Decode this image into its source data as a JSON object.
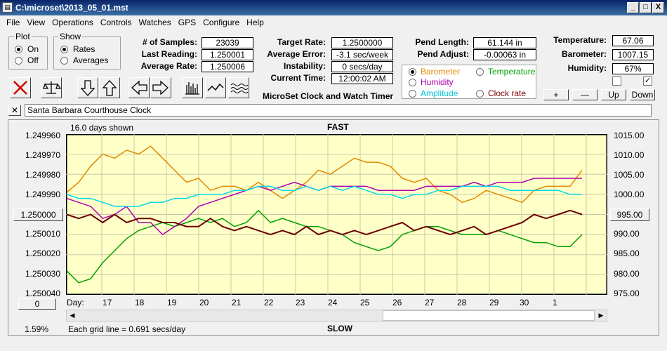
{
  "window": {
    "title": "C:\\microset\\2013_05_01.mst",
    "controls": [
      "_",
      "□",
      "X"
    ]
  },
  "menu": [
    "File",
    "View",
    "Operations",
    "Controls",
    "Watches",
    "GPS",
    "Configure",
    "Help"
  ],
  "plot_group": {
    "title": "Plot",
    "options": [
      "On",
      "Off"
    ],
    "selected": "On"
  },
  "show_group": {
    "title": "Show",
    "options": [
      "Rates",
      "Averages"
    ],
    "selected": "Rates"
  },
  "stats": {
    "samples_label": "# of Samples:",
    "samples": "23039",
    "last_label": "Last Reading:",
    "last": "1.250001",
    "avg_label": "Average Rate:",
    "avg": "1.250006"
  },
  "rates": {
    "target_label": "Target Rate:",
    "target": "1.2500000",
    "err_label": "Average Error:",
    "err": "-3.1 sec/week",
    "inst_label": "Instability:",
    "inst": "0 secs/day",
    "time_label": "Current Time:",
    "time": "12:00:02 AM"
  },
  "app_label": "MicroSet Clock and Watch Timer",
  "pend": {
    "len_label": "Pend Length:",
    "len": "61.144 in",
    "adj_label": "Pend Adjust:",
    "adj": "-0.00063 in"
  },
  "env": {
    "temp_label": "Temperature:",
    "temp": "67.06",
    "baro_label": "Barometer:",
    "baro": "1007.15",
    "hum_label": "Humidity:",
    "hum": "67%"
  },
  "aux_options": [
    {
      "label": "Barometer",
      "color": "#e08a00",
      "selected": true
    },
    {
      "label": "Temperature",
      "color": "#00a000",
      "selected": false
    },
    {
      "label": "Humidity",
      "color": "#b000b0",
      "selected": false
    },
    {
      "label": "Clock rate",
      "color": "#800000",
      "selected": false
    },
    {
      "label": "Amplitude",
      "color": "#00c8d8",
      "selected": false
    }
  ],
  "scale_buttons": [
    "+",
    "—",
    "Up",
    "Down"
  ],
  "checkboxes": [
    false,
    true
  ],
  "clock_name": "Santa Barbara Courthouse Clock",
  "chart_data": {
    "type": "line",
    "top_label": "FAST",
    "bottom_label": "SLOW",
    "days_shown": "16.0 days shown",
    "grid_note": "Each grid line = 0.691 secs/day",
    "percent": "1.59%",
    "left_button": "1.250000",
    "right_button": "995.00",
    "zero_button": "0",
    "day_label": "Day:",
    "x_ticks": [
      "17",
      "18",
      "19",
      "20",
      "21",
      "22",
      "23",
      "24",
      "25",
      "26",
      "27",
      "28",
      "29",
      "30",
      "1"
    ],
    "y_left_ticks": [
      "1.249960",
      "1.249970",
      "1.249980",
      "1.249990",
      "1.250000",
      "1.250010",
      "1.250020",
      "1.250030",
      "1.250040"
    ],
    "y_right_ticks": [
      "1015.00",
      "1010.00",
      "1005.00",
      "1000.00",
      "995.00",
      "990.00",
      "985.00",
      "980.00",
      "975.00"
    ],
    "grid": true,
    "series": [
      {
        "color": "#e08a00",
        "values": [
          1000.5,
          1003,
          1007,
          1010,
          1009,
          1011,
          1010,
          1012,
          1009,
          1006,
          1003,
          1004,
          1001,
          1002,
          1002,
          1001,
          1003,
          1001,
          999,
          1001,
          1003,
          1006,
          1005,
          1007,
          1009,
          1008,
          1008,
          1007,
          1004,
          1003,
          1004,
          1001,
          1000,
          998,
          999,
          1001,
          1000,
          999,
          998,
          1001,
          1002,
          1002,
          1002,
          1006
        ]
      },
      {
        "color": "#00a000",
        "values": [
          981,
          978,
          979,
          983,
          986,
          989,
          991,
          992,
          993,
          992,
          993,
          994,
          993,
          994,
          992,
          993,
          996,
          993,
          994,
          993,
          992,
          992,
          991,
          990,
          988,
          987,
          986,
          987,
          990,
          991,
          992,
          992,
          991,
          990,
          990,
          990,
          991,
          990,
          989,
          988,
          988,
          987,
          987,
          990
        ]
      },
      {
        "color": "#b000b0",
        "values": [
          999,
          998,
          997,
          994,
          995,
          997,
          993,
          993,
          990,
          992,
          994,
          997,
          998,
          999,
          1000,
          1001,
          1002,
          1001,
          1002,
          1003,
          1002,
          1001,
          1002,
          1002,
          1002,
          1002,
          1001,
          1001,
          1001,
          1001,
          1002,
          1002,
          1002,
          1002,
          1003,
          1002,
          1003,
          1003,
          1003,
          1004,
          1004,
          1004,
          1004,
          1004
        ]
      },
      {
        "color": "#00d8e8",
        "values": [
          1000,
          999,
          999,
          998,
          997,
          997,
          997,
          998,
          998,
          999,
          999,
          1000,
          1000,
          1000,
          1001,
          1001,
          1002,
          1002,
          1001,
          1001,
          1002,
          1001,
          1002,
          1001,
          1002,
          1001,
          1000,
          1000,
          999,
          1000,
          1000,
          1001,
          1001,
          1002,
          1002,
          1002,
          1002,
          1001,
          1001,
          1001,
          1001,
          1001,
          1000,
          1000
        ]
      },
      {
        "color": "#6a0000",
        "values": [
          995,
          994,
          995,
          993,
          995,
          993,
          994,
          994,
          993,
          993,
          992,
          992,
          994,
          992,
          991,
          992,
          991,
          990,
          991,
          990,
          992,
          990,
          991,
          990,
          991,
          990,
          991,
          992,
          993,
          991,
          992,
          991,
          990,
          991,
          992,
          990,
          991,
          992,
          993,
          995,
          994,
          995,
          996,
          995
        ]
      }
    ],
    "ylim_right": [
      975,
      1015
    ]
  }
}
